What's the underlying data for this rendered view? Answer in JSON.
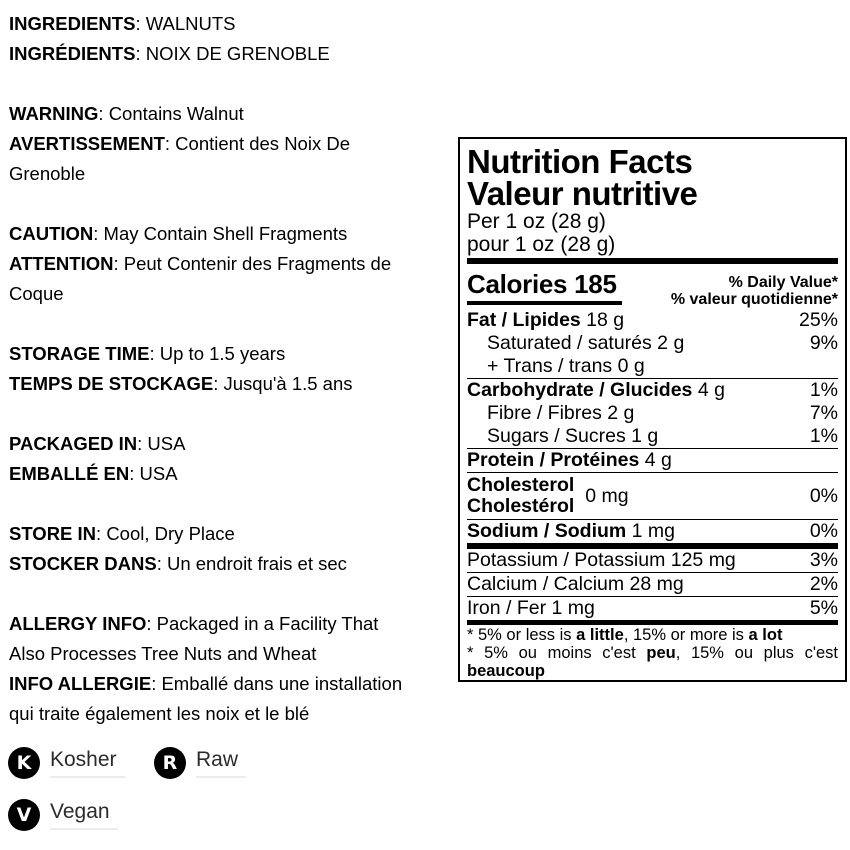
{
  "info": {
    "groups": [
      {
        "lines": [
          {
            "b": "INGREDIENTS",
            "t": ": WALNUTS"
          },
          {
            "b": "INGRÉDIENTS",
            "t": ": NOIX DE GRENOBLE"
          }
        ]
      },
      {
        "lines": [
          {
            "b": "WARNING",
            "t": ": Contains Walnut"
          },
          {
            "b": "AVERTISSEMENT",
            "t": ": Contient des Noix De"
          },
          {
            "b": "",
            "t": "Grenoble"
          }
        ]
      },
      {
        "lines": [
          {
            "b": "CAUTION",
            "t": ": May Contain Shell Fragments"
          },
          {
            "b": "ATTENTION",
            "t": ": Peut Contenir des Fragments de"
          },
          {
            "b": "",
            "t": "Coque"
          }
        ]
      },
      {
        "lines": [
          {
            "b": "STORAGE TIME",
            "t": ": Up to 1.5 years"
          },
          {
            "b": "TEMPS DE STOCKAGE",
            "t": ": Jusqu'à 1.5 ans"
          }
        ]
      },
      {
        "lines": [
          {
            "b": "PACKAGED IN",
            "t": ": USA"
          },
          {
            "b": "EMBALLÉ EN",
            "t": ": USA"
          }
        ]
      },
      {
        "lines": [
          {
            "b": "STORE IN",
            "t": ": Cool, Dry Place"
          },
          {
            "b": "STOCKER DANS",
            "t": ": Un endroit frais et sec"
          }
        ]
      },
      {
        "lines": [
          {
            "b": "ALLERGY INFO",
            "t": ": Packaged in a Facility That"
          },
          {
            "b": "",
            "t": "Also Processes Tree Nuts and Wheat"
          },
          {
            "b": "INFO ALLERGIE",
            "t": ": Emballé dans une installation"
          },
          {
            "b": "",
            "t": "qui traite également les noix et le blé"
          }
        ]
      }
    ]
  },
  "badges": [
    {
      "letter": "K",
      "label": "Kosher"
    },
    {
      "letter": "R",
      "label": "Raw"
    },
    {
      "letter": "V",
      "label": "Vegan"
    }
  ],
  "nutrition": {
    "title_en": "Nutrition Facts",
    "title_fr": "Valeur nutritive",
    "serving_en": "Per 1 oz (28 g)",
    "serving_fr": "pour 1 oz (28 g)",
    "calories": "Calories 185",
    "daily_value_en": "% Daily Value*",
    "daily_value_fr": "% valeur quotidienne*",
    "rows": [
      {
        "type": "main",
        "b": "Fat / Lipides",
        "t": " 18 g",
        "pct": "25%",
        "sep": "none"
      },
      {
        "type": "sub",
        "b": "",
        "t": "Saturated / saturés 2 g",
        "pct": "9%",
        "sep": "none"
      },
      {
        "type": "sub",
        "b": "",
        "t": "+ Trans / trans 0 g",
        "pct": "",
        "sep": "none"
      },
      {
        "type": "main",
        "b": "Carbohydrate / Glucides",
        "t": " 4 g",
        "pct": "1%",
        "sep": "thin"
      },
      {
        "type": "sub",
        "b": "",
        "t": "Fibre / Fibres 2 g",
        "pct": "7%",
        "sep": "none"
      },
      {
        "type": "sub",
        "b": "",
        "t": "Sugars / Sucres 1 g",
        "pct": "1%",
        "sep": "none"
      },
      {
        "type": "main",
        "b": "Protein / Protéines",
        "t": " 4 g",
        "pct": "",
        "sep": "thin"
      },
      {
        "type": "twoline",
        "lines": [
          "Cholesterol",
          "Cholestérol"
        ],
        "t": "0 mg",
        "pct": "0%",
        "sep": "thin"
      },
      {
        "type": "main",
        "b": "Sodium / Sodium",
        "t": " 1 mg",
        "pct": "0%",
        "sep": "thin"
      },
      {
        "type": "plain",
        "b": "",
        "t": "Potassium / Potassium 125 mg",
        "pct": "3%",
        "sep": "thick"
      },
      {
        "type": "plain",
        "b": "",
        "t": "Calcium / Calcium 28 mg",
        "pct": "2%",
        "sep": "thin"
      },
      {
        "type": "plain",
        "b": "",
        "t": "Iron / Fer 1 mg",
        "pct": "5%",
        "sep": "thin"
      }
    ],
    "footnote_en": [
      {
        "t": "* 5% or less is "
      },
      {
        "t": "a little",
        "b": true
      },
      {
        "t": ", 15% or more is "
      },
      {
        "t": "a lot",
        "b": true
      }
    ],
    "footnote_fr": [
      {
        "t": "* 5% ou moins c'est "
      },
      {
        "t": "peu",
        "b": true
      },
      {
        "t": ", 15% ou plus c'est "
      },
      {
        "t": "beaucoup",
        "b": true
      }
    ]
  }
}
